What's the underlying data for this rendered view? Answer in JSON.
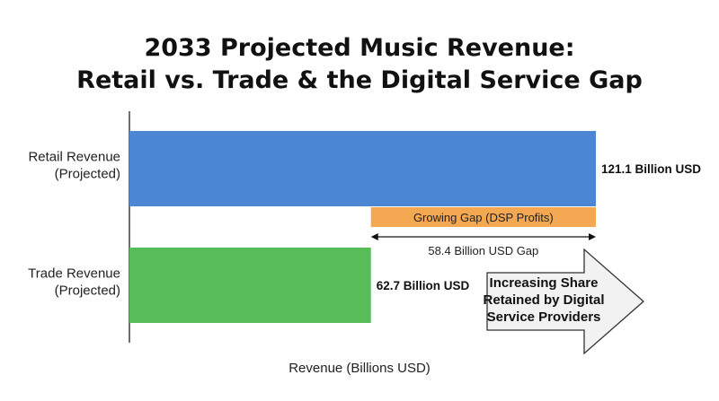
{
  "chart_data": {
    "type": "bar",
    "orientation": "horizontal",
    "title_lines": [
      "2033 Projected Music Revenue:",
      "Retail vs. Trade & the Digital Service Gap"
    ],
    "xlabel": "Revenue (Billions USD)",
    "ylabel": "",
    "xlim": [
      0,
      121.1
    ],
    "grid": false,
    "categories": [
      "Retail Revenue\n(Projected)",
      "Trade Revenue\n(Projected)"
    ],
    "values": [
      121.1,
      62.7
    ],
    "value_labels": [
      "121.1 Billion USD",
      "62.7 Billion USD"
    ],
    "colors": [
      "#4a86d2",
      "#58bc58"
    ],
    "gap": {
      "start": 62.7,
      "end": 121.1,
      "label": "Growing Gap (DSP Profits)",
      "measure_label": "58.4 Billion USD Gap",
      "color": "#f3a851"
    },
    "annotation": {
      "text_lines": [
        "Increasing Share",
        "Retained by Digital",
        "Service Providers"
      ],
      "shape": "right-arrow",
      "fill": "#f2f2f2",
      "stroke": "#333333"
    }
  }
}
